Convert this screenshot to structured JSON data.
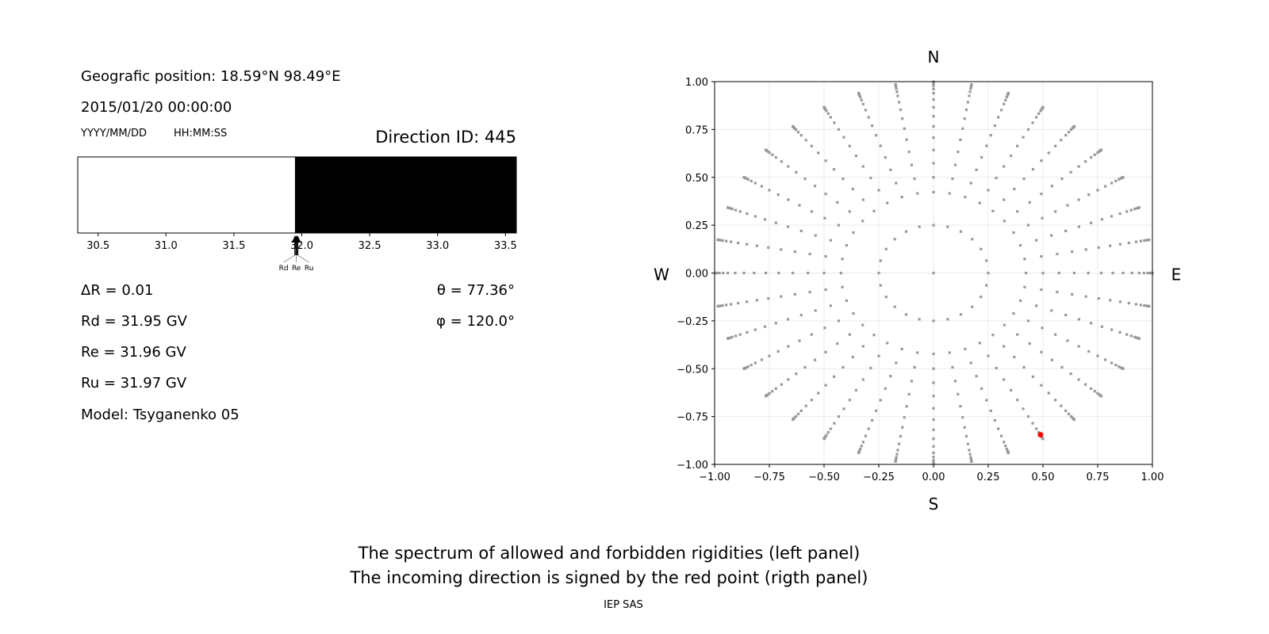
{
  "info": {
    "position": "Geografic position: 18.59°N 98.49°E",
    "datetime": "2015/01/20 00:00:00",
    "date_format": "YYYY/MM/DD",
    "time_format": "HH:MM:SS",
    "direction": "Direction ID: 445",
    "delta_r": "ΔR = 0.01",
    "rd": "Rd = 31.95 GV",
    "re": "Re = 31.96 GV",
    "ru": "Ru = 31.97 GV",
    "model": "Model: Tsyganenko 05",
    "theta": "θ = 77.36°",
    "phi": "φ = 120.0°"
  },
  "footer": {
    "line1": "The spectrum of allowed and forbidden rigidities (left panel)",
    "line2": "The incoming direction is signed by the red point (rigth panel)",
    "credit": "IEP SAS"
  },
  "chart_data": [
    {
      "type": "bar",
      "subtype": "rigidity-spectrum",
      "xlim": [
        30.35,
        33.58
      ],
      "xticks": [
        30.5,
        31.0,
        31.5,
        32.0,
        32.5,
        33.0,
        33.5
      ],
      "xtick_labels": [
        "30.5",
        "31.0",
        "31.5",
        "32.0",
        "32.5",
        "33.0",
        "33.5"
      ],
      "segments": [
        {
          "from": 30.35,
          "to": 31.95,
          "state": "allowed",
          "color": "#ffffff"
        },
        {
          "from": 31.95,
          "to": 33.58,
          "state": "forbidden",
          "color": "#000000"
        }
      ],
      "markers": [
        {
          "label": "Rd",
          "value": 31.95
        },
        {
          "label": "Re",
          "value": 31.96
        },
        {
          "label": "Ru",
          "value": 31.97
        }
      ]
    },
    {
      "type": "scatter",
      "subtype": "direction-map",
      "xlim": [
        -1,
        1
      ],
      "ylim": [
        -1,
        1
      ],
      "xticks": [
        "−1.00",
        "−0.75",
        "−0.50",
        "−0.25",
        "0.00",
        "0.25",
        "0.50",
        "0.75",
        "1.00"
      ],
      "yticks": [
        "1.00",
        "0.75",
        "0.50",
        "0.25",
        "0.00",
        "−0.25",
        "−0.50",
        "−0.75",
        "−1.00"
      ],
      "grid": true,
      "compass": {
        "n": "N",
        "s": "S",
        "e": "E",
        "w": "W"
      },
      "grid_points": {
        "color": "#999999",
        "ray_azimuths_step_deg": 10,
        "ray_zenith_deg": [
          25,
          30,
          35,
          40,
          45,
          50,
          55,
          60,
          65,
          70,
          74,
          78,
          81,
          84,
          86,
          88,
          90
        ],
        "ring_radius": 0.25,
        "ring_azimuth_step_deg": 15,
        "center": [
          0,
          0
        ]
      },
      "selected_point": {
        "x": 0.489,
        "y": -0.845,
        "color": "#ff0000"
      }
    }
  ]
}
